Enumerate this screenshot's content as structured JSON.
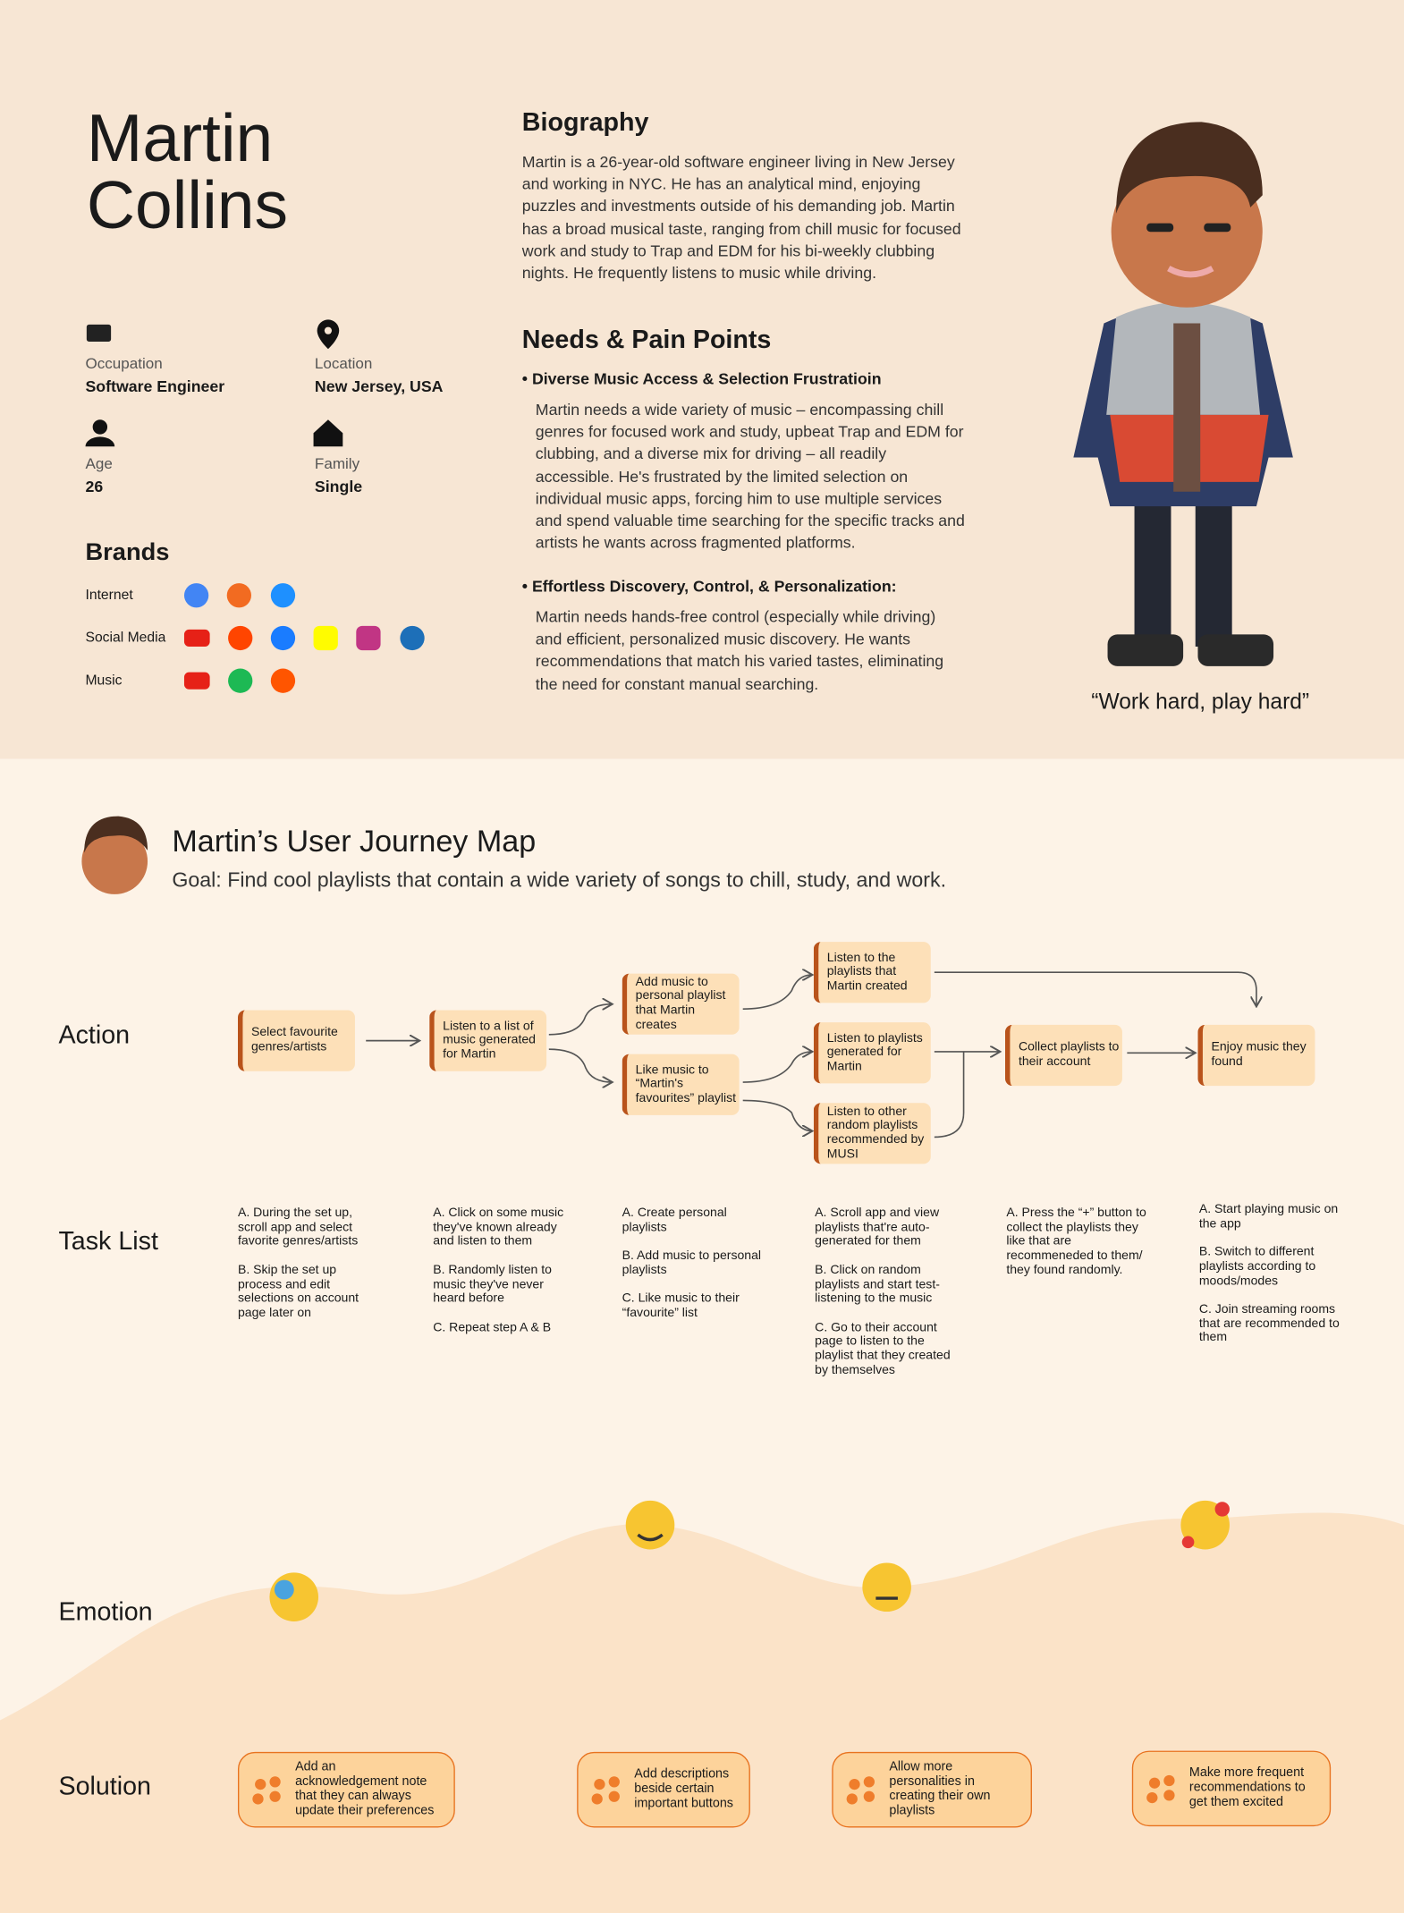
{
  "persona": {
    "name_lines": [
      "Martin",
      "Collins"
    ],
    "details": [
      {
        "label": "Occupation",
        "value": "Software Engineer"
      },
      {
        "label": "Location",
        "value": "New Jersey, USA"
      },
      {
        "label": "Age",
        "value": "26"
      },
      {
        "label": "Family",
        "value": "Single"
      }
    ],
    "brands": {
      "title": "Brands",
      "rows": [
        "Internet",
        "Social Media",
        "Music"
      ]
    },
    "biography": {
      "title": "Biography",
      "text": "Martin is a 26-year-old software engineer living in New Jersey and working in NYC. He has an analytical mind, enjoying puzzles and investments outside of his demanding job. Martin has a broad musical taste, ranging from chill music for focused work and study to Trap and EDM for his bi-weekly clubbing nights. He frequently listens to music while driving."
    },
    "needs": {
      "title": "Needs & Pain Points",
      "items": [
        {
          "title": "Diverse Music Access & Selection Frustratioin",
          "text": "Martin needs a wide variety of music – encompassing chill genres for focused work and study, upbeat Trap and EDM for clubbing, and a diverse mix for driving – all readily accessible. He's frustrated by the limited selection on individual music apps, forcing him to use multiple services and spend valuable time searching for the specific tracks and artists he wants across fragmented platforms."
        },
        {
          "title": "Effortless Discovery, Control, & Personalization:",
          "text": "Martin needs hands-free control (especially while driving) and efficient, personalized music discovery. He wants recommendations that match his varied tastes, eliminating the need for constant manual searching."
        }
      ]
    },
    "quote": "“Work hard, play hard”"
  },
  "journey": {
    "title": "Martin’s User Journey Map",
    "goal": "Goal: Find cool playlists that contain a wide variety of songs to chill, study, and work.",
    "row_labels": [
      "Action",
      "Task List",
      "Emotion",
      "Solution"
    ],
    "actions": [
      "Select favourite genres/artists",
      "Listen to a list of music generated for Martin",
      "Add music to personal playlist that Martin creates",
      "Like music to “Martin's favourites” playlist",
      "Listen to the playlists that Martin created",
      "Listen to playlists generated for Martin",
      "Listen to other random playlists recommended by MUSI",
      "Collect playlists to their account",
      "Enjoy music they found"
    ],
    "tasks": [
      [
        "A. During the set up, scroll app and select favorite genres/artists",
        "B. Skip the set up process and edit selections on account page later on"
      ],
      [
        "A. Click on some music they've known already and listen to them",
        "B. Randomly listen to music they've never heard before",
        "C. Repeat step A & B"
      ],
      [
        "A. Create personal playlists",
        "B. Add music to personal playlists",
        "C. Like music to their “favourite” list"
      ],
      [
        "A. Scroll app and view playlists that're auto-generated for them",
        "B. Click on random playlists and start test-listening to the music",
        "C. Go to their account page to listen to the playlist that they created by themselves"
      ],
      [
        "A. Press the “+” button to collect the playlists they like that are recommeneded to them/ they found randomly."
      ],
      [
        "A. Start playing music on the app",
        "B. Switch to different playlists according to moods/modes",
        "C. Join streaming rooms that are recommended to them"
      ]
    ],
    "solutions": [
      "Add an acknowledgement note that they can always update their preferences",
      "Add descriptions beside certain important buttons",
      "Allow more personalities in creating their own playlists",
      "Make more frequent recommendations to get them excited"
    ]
  }
}
